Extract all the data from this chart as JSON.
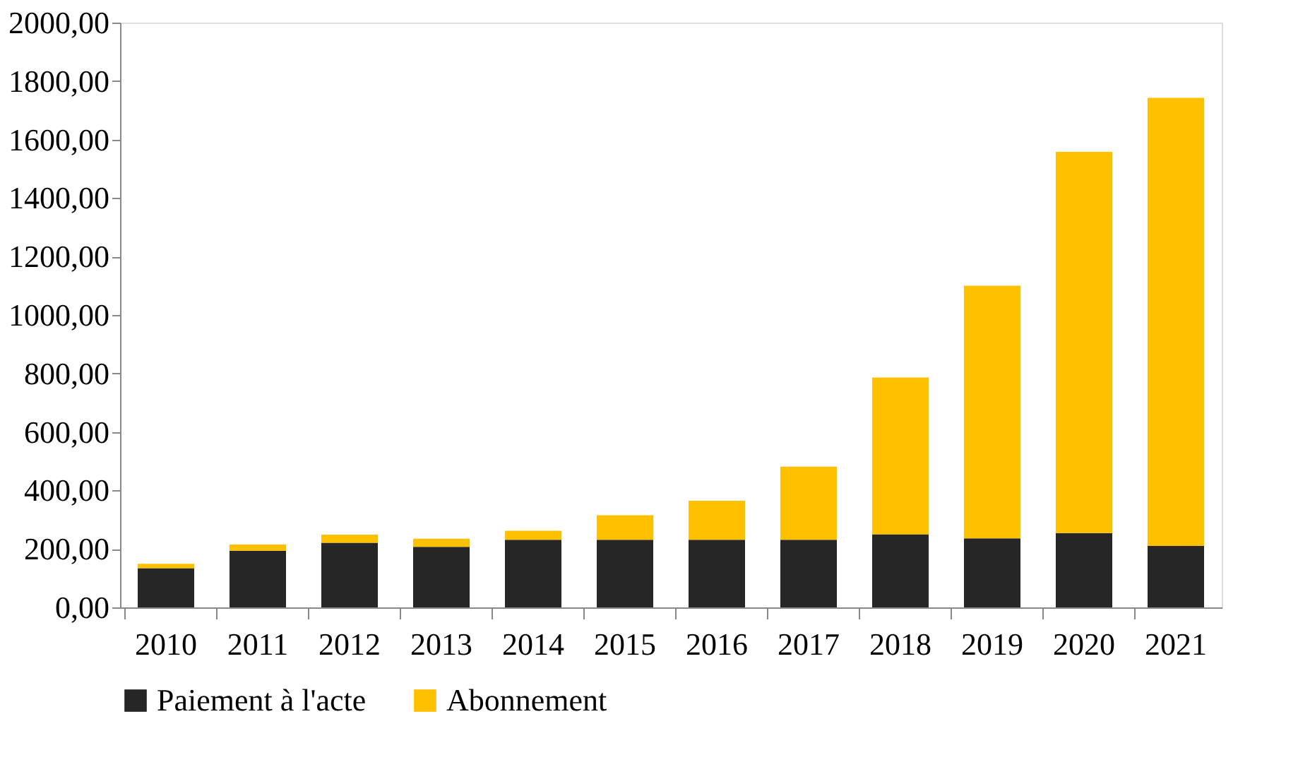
{
  "chart_data": {
    "type": "bar",
    "stacked": true,
    "categories": [
      "2010",
      "2011",
      "2012",
      "2013",
      "2014",
      "2015",
      "2016",
      "2017",
      "2018",
      "2019",
      "2020",
      "2021"
    ],
    "series": [
      {
        "name": "Paiement à l'acte",
        "color": "#262626",
        "values": [
          134,
          194,
          221,
          207,
          231,
          231,
          231,
          231,
          250,
          236,
          254,
          210
        ]
      },
      {
        "name": "Abonnement",
        "color": "#ffc000",
        "values": [
          15,
          21,
          28,
          28,
          31,
          84,
          134,
          250,
          536,
          864,
          1304,
          1533
        ]
      }
    ],
    "ylim": [
      0,
      2000
    ],
    "yticks": [
      {
        "value": 0,
        "label": "0,00"
      },
      {
        "value": 200,
        "label": "200,00"
      },
      {
        "value": 400,
        "label": "400,00"
      },
      {
        "value": 600,
        "label": "600,00"
      },
      {
        "value": 800,
        "label": "800,00"
      },
      {
        "value": 1000,
        "label": "1000,00"
      },
      {
        "value": 1200,
        "label": "1200,00"
      },
      {
        "value": 1400,
        "label": "1400,00"
      },
      {
        "value": 1600,
        "label": "1600,00"
      },
      {
        "value": 1800,
        "label": "1800,00"
      },
      {
        "value": 2000,
        "label": "2000,00"
      }
    ],
    "grid": false,
    "legend": "bottom"
  }
}
